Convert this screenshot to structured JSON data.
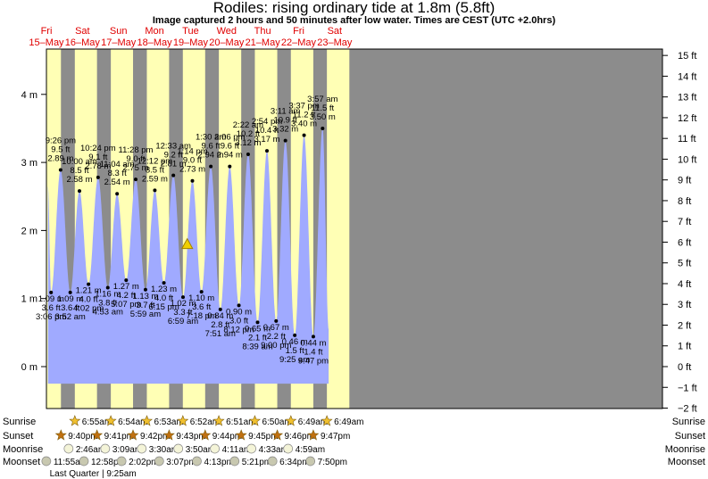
{
  "title": "Rodiles: rising  ordinary tide at 1.8m (5.8ft)",
  "subtitle": "Image captured 2 hours and 50 minutes after low water. Times are CEST (UTC +2.0hrs)",
  "colors": {
    "day": "#ffffb5",
    "night": "#8c8c8c",
    "water": "#a0aaff",
    "axis": "#000000",
    "dayLabel": "#e00000",
    "sun": "#f0c030",
    "moon": "#e6e6c0"
  },
  "days": [
    {
      "dow": "Fri",
      "date": "15–May"
    },
    {
      "dow": "Sat",
      "date": "16–May"
    },
    {
      "dow": "Sun",
      "date": "17–May"
    },
    {
      "dow": "Mon",
      "date": "18–May"
    },
    {
      "dow": "Tue",
      "date": "19–May"
    },
    {
      "dow": "Wed",
      "date": "20–May"
    },
    {
      "dow": "Thu",
      "date": "21–May"
    },
    {
      "dow": "Fri",
      "date": "22–May"
    },
    {
      "dow": "Sat",
      "date": "23–May"
    }
  ],
  "chart_data": {
    "type": "area",
    "title": "Rodiles: rising  ordinary tide at 1.8m (5.8ft)",
    "ylabel_left": "m",
    "ylabel_right": "ft",
    "left_ticks": [
      "0 m",
      "1 m",
      "2 m",
      "3 m",
      "4 m"
    ],
    "right_ticks": [
      "−2 ft",
      "−1 ft",
      "0 ft",
      "1 ft",
      "2 ft",
      "3 ft",
      "4 ft",
      "5 ft",
      "6 ft",
      "7 ft",
      "8 ft",
      "9 ft",
      "10 ft",
      "11 ft",
      "12 ft",
      "13 ft",
      "14 ft",
      "15 ft"
    ],
    "ylim_m": [
      -0.7,
      4.75
    ],
    "x_range": [
      "2026-05-15 12:00",
      "2026-05-23 15:00"
    ],
    "current": {
      "time": "19–May 9:49 am",
      "height_m": 1.8,
      "label": "rising  ordinary tide at 1.8m (5.8ft)"
    },
    "series_start": {
      "time": "15–May 1:00 pm",
      "height_m": 2.65
    },
    "series_end": {
      "time": "23–May 8:00 am",
      "height_m": 0.55
    },
    "tides": [
      {
        "type": "low",
        "day": 0,
        "time": "3:06 pm",
        "m": "1.09 m",
        "ft": "3.6 ft",
        "height_m": 1.09
      },
      {
        "type": "high",
        "day": 0,
        "time": "9:26 pm",
        "m": "2.89 m",
        "ft": "9.5 ft",
        "height_m": 2.89
      },
      {
        "type": "low",
        "day": 1,
        "time": "3:52 am",
        "m": "1.09 m",
        "ft": "3.6 ft",
        "height_m": 1.09
      },
      {
        "type": "high",
        "day": 1,
        "time": "10:00 am",
        "m": "2.58 m",
        "ft": "8.5 ft",
        "height_m": 2.58
      },
      {
        "type": "low",
        "day": 1,
        "time": "4:02 pm",
        "m": "1.21 m",
        "ft": "4.0 ft",
        "height_m": 1.21
      },
      {
        "type": "high",
        "day": 1,
        "time": "10:24 pm",
        "m": "2.78 m",
        "ft": "9.1 ft",
        "height_m": 2.78
      },
      {
        "type": "low",
        "day": 2,
        "time": "4:53 am",
        "m": "1.16 m",
        "ft": "3.8 ft",
        "height_m": 1.16
      },
      {
        "type": "high",
        "day": 2,
        "time": "11:04 am",
        "m": "2.54 m",
        "ft": "8.3 ft",
        "height_m": 2.54
      },
      {
        "type": "low",
        "day": 2,
        "time": "5:07 pm",
        "m": "1.27 m",
        "ft": "4.2 ft",
        "height_m": 1.27
      },
      {
        "type": "high",
        "day": 2,
        "time": "11:28 pm",
        "m": "2.75 m",
        "ft": "9.0 ft",
        "height_m": 2.75
      },
      {
        "type": "low",
        "day": 3,
        "time": "5:59 am",
        "m": "1.13 m",
        "ft": "3.7 ft",
        "height_m": 1.13
      },
      {
        "type": "high",
        "day": 3,
        "time": "12:12 pm",
        "m": "2.59 m",
        "ft": "8.5 ft",
        "height_m": 2.59
      },
      {
        "type": "low",
        "day": 3,
        "time": "6:15 pm",
        "m": "1.23 m",
        "ft": "4.0 ft",
        "height_m": 1.23
      },
      {
        "type": "high",
        "day": 4,
        "time": "12:33 am",
        "m": "2.81 m",
        "ft": "9.2 ft",
        "height_m": 2.81
      },
      {
        "type": "low",
        "day": 4,
        "time": "6:59 am",
        "m": "1.02 m",
        "ft": "3.3 ft",
        "height_m": 1.02
      },
      {
        "type": "high",
        "day": 4,
        "time": "1:14 pm",
        "m": "2.73 m",
        "ft": "9.0 ft",
        "height_m": 2.73
      },
      {
        "type": "low",
        "day": 4,
        "time": "7:18 pm",
        "m": "1.10 m",
        "ft": "3.6 ft",
        "height_m": 1.1
      },
      {
        "type": "high",
        "day": 5,
        "time": "1:30 am",
        "m": "2.94 m",
        "ft": "9.6 ft",
        "height_m": 2.94
      },
      {
        "type": "low",
        "day": 5,
        "time": "7:51 am",
        "m": "0.84 m",
        "ft": "2.8 ft",
        "height_m": 0.84
      },
      {
        "type": "high",
        "day": 5,
        "time": "2:06 pm",
        "m": "2.94 m",
        "ft": "9.6 ft",
        "height_m": 2.94
      },
      {
        "type": "low",
        "day": 5,
        "time": "8:12 pm",
        "m": "0.90 m",
        "ft": "3.0 ft",
        "height_m": 0.9
      },
      {
        "type": "high",
        "day": 6,
        "time": "2:22 am",
        "m": "3.12 m",
        "ft": "10.2 ft",
        "height_m": 3.12
      },
      {
        "type": "low",
        "day": 6,
        "time": "8:39 am",
        "m": "0.65 m",
        "ft": "2.1 ft",
        "height_m": 0.65
      },
      {
        "type": "high",
        "day": 6,
        "time": "2:54 pm",
        "m": "3.17 m",
        "ft": "10.4 ft",
        "height_m": 3.17
      },
      {
        "type": "low",
        "day": 6,
        "time": "9:00 pm",
        "m": "0.67 m",
        "ft": "2.2 ft",
        "height_m": 0.67
      },
      {
        "type": "high",
        "day": 7,
        "time": "3:11 am",
        "m": "3.32 m",
        "ft": "10.9 ft",
        "height_m": 3.32
      },
      {
        "type": "low",
        "day": 7,
        "time": "9:25 am",
        "m": "0.46 m",
        "ft": "1.5 ft",
        "height_m": 0.46
      },
      {
        "type": "high",
        "day": 7,
        "time": "3:37 pm",
        "m": "3.40 m",
        "ft": "11.2 ft",
        "height_m": 3.4
      },
      {
        "type": "low",
        "day": 7,
        "time": "9:47 pm",
        "m": "0.44 m",
        "ft": "1.4 ft",
        "height_m": 0.44
      },
      {
        "type": "high",
        "day": 8,
        "time": "3:57 am",
        "m": "3.50 m",
        "ft": "11.5 ft",
        "height_m": 3.5
      }
    ]
  },
  "astro": {
    "labels": {
      "sunrise": "Sunrise",
      "sunset": "Sunset",
      "moonrise": "Moonrise",
      "moonset": "Moonset"
    },
    "sunrise": [
      {
        "day": 1,
        "text": "6:55am"
      },
      {
        "day": 2,
        "text": "6:54am"
      },
      {
        "day": 3,
        "text": "6:53am"
      },
      {
        "day": 4,
        "text": "6:52am"
      },
      {
        "day": 5,
        "text": "6:51am"
      },
      {
        "day": 6,
        "text": "6:50am"
      },
      {
        "day": 7,
        "text": "6:49am"
      },
      {
        "day": 8,
        "text": "6:49am"
      }
    ],
    "sunset": [
      {
        "day": 0,
        "text": "9:40pm"
      },
      {
        "day": 1,
        "text": "9:41pm"
      },
      {
        "day": 2,
        "text": "9:42pm"
      },
      {
        "day": 3,
        "text": "9:43pm"
      },
      {
        "day": 4,
        "text": "9:44pm"
      },
      {
        "day": 5,
        "text": "9:45pm"
      },
      {
        "day": 6,
        "text": "9:46pm"
      },
      {
        "day": 7,
        "text": "9:47pm"
      }
    ],
    "moonrise": [
      {
        "day": 1,
        "text": "2:46am"
      },
      {
        "day": 2,
        "text": "3:09am"
      },
      {
        "day": 3,
        "text": "3:30am"
      },
      {
        "day": 4,
        "text": "3:50am"
      },
      {
        "day": 5,
        "text": "4:11am"
      },
      {
        "day": 6,
        "text": "4:33am"
      },
      {
        "day": 7,
        "text": "4:59am"
      }
    ],
    "moonset": [
      {
        "day": 0,
        "text": "11:55am"
      },
      {
        "day": 1,
        "text": "12:58pm"
      },
      {
        "day": 2,
        "text": "2:02pm"
      },
      {
        "day": 3,
        "text": "3:07pm"
      },
      {
        "day": 4,
        "text": "4:13pm"
      },
      {
        "day": 5,
        "text": "5:21pm"
      },
      {
        "day": 6,
        "text": "6:34pm"
      },
      {
        "day": 7,
        "text": "7:50pm"
      }
    ],
    "moon_phase": "Last Quarter | 9:25am"
  }
}
